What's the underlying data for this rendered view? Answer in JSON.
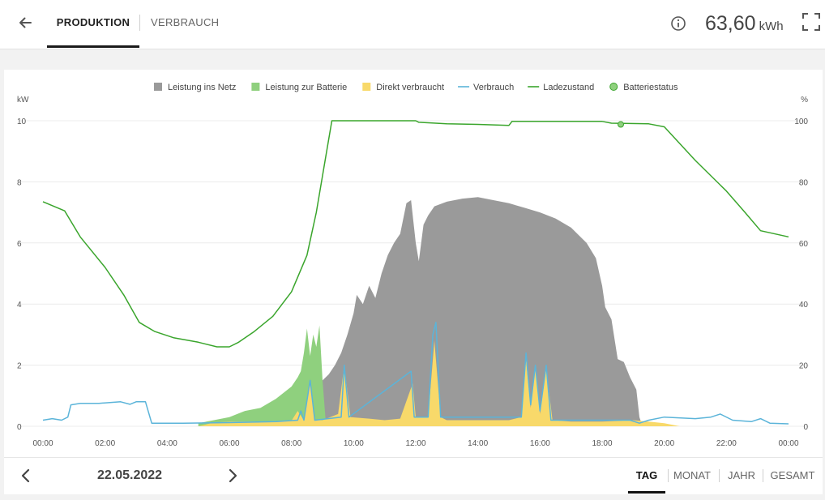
{
  "header": {
    "tabs": [
      {
        "label": "PRODUKTION",
        "active": true
      },
      {
        "label": "VERBRAUCH",
        "active": false
      }
    ],
    "energy_value": "63,60",
    "energy_unit": "kWh",
    "icons": [
      "arrow-left-icon",
      "info-icon",
      "fullscreen-icon"
    ]
  },
  "colors": {
    "grid": "#9a9a9a",
    "battery": "#8fd07e",
    "direct": "#f8d96a",
    "consumption": "#5bb4d9",
    "soc": "#3aa52c"
  },
  "footer": {
    "date": "22.05.2022",
    "periods": [
      {
        "label": "TAG",
        "active": true
      },
      {
        "label": "MONAT",
        "active": false
      },
      {
        "label": "JAHR",
        "active": false
      },
      {
        "label": "GESAMT",
        "active": false
      }
    ]
  },
  "chart_data": {
    "type": "area",
    "left_unit": "kW",
    "right_unit": "%",
    "y_left_range": [
      0,
      10
    ],
    "y_right_range": [
      0,
      100
    ],
    "y_left_ticks": [
      "0",
      "2",
      "4",
      "6",
      "8",
      "10"
    ],
    "y_right_ticks": [
      "0",
      "20",
      "40",
      "60",
      "80",
      "100"
    ],
    "x_range_hours": [
      0,
      24
    ],
    "x_ticks": [
      "00:00",
      "02:00",
      "04:00",
      "06:00",
      "08:00",
      "10:00",
      "12:00",
      "14:00",
      "16:00",
      "18:00",
      "20:00",
      "22:00",
      "00:00"
    ],
    "legend": [
      {
        "name": "Leistung ins Netz",
        "marker": "square",
        "color_key": "grid"
      },
      {
        "name": "Leistung zur Batterie",
        "marker": "square",
        "color_key": "battery"
      },
      {
        "name": "Direkt verbraucht",
        "marker": "square",
        "color_key": "direct"
      },
      {
        "name": "Verbrauch",
        "marker": "line",
        "color_key": "consumption"
      },
      {
        "name": "Ladezustand",
        "marker": "line",
        "color_key": "soc"
      },
      {
        "name": "Batteriestatus",
        "marker": "circle",
        "color_key": "soc"
      }
    ],
    "series": [
      {
        "name": "Leistung ins Netz",
        "kind": "area",
        "axis": "left",
        "color_key": "grid",
        "points": [
          [
            9.0,
            1.5
          ],
          [
            9.2,
            1.7
          ],
          [
            9.4,
            2.0
          ],
          [
            9.6,
            2.4
          ],
          [
            9.8,
            3.0
          ],
          [
            10.0,
            3.7
          ],
          [
            10.1,
            4.3
          ],
          [
            10.3,
            4.0
          ],
          [
            10.5,
            4.6
          ],
          [
            10.7,
            4.2
          ],
          [
            10.9,
            5.0
          ],
          [
            11.1,
            5.6
          ],
          [
            11.3,
            6.0
          ],
          [
            11.5,
            6.3
          ],
          [
            11.7,
            7.3
          ],
          [
            11.85,
            7.4
          ],
          [
            12.0,
            6.0
          ],
          [
            12.1,
            5.4
          ],
          [
            12.25,
            6.6
          ],
          [
            12.4,
            6.9
          ],
          [
            12.6,
            7.2
          ],
          [
            13.0,
            7.35
          ],
          [
            13.5,
            7.45
          ],
          [
            14.0,
            7.5
          ],
          [
            14.5,
            7.4
          ],
          [
            15.0,
            7.3
          ],
          [
            15.5,
            7.15
          ],
          [
            16.0,
            7.0
          ],
          [
            16.5,
            6.8
          ],
          [
            17.0,
            6.5
          ],
          [
            17.5,
            6.0
          ],
          [
            17.8,
            5.5
          ],
          [
            18.0,
            4.6
          ],
          [
            18.1,
            3.9
          ],
          [
            18.3,
            3.5
          ],
          [
            18.5,
            2.2
          ],
          [
            18.7,
            2.1
          ],
          [
            18.9,
            1.6
          ],
          [
            19.1,
            1.2
          ],
          [
            19.2,
            0.3
          ],
          [
            19.3,
            0.0
          ]
        ]
      },
      {
        "name": "Leistung zur Batterie",
        "kind": "area",
        "axis": "left",
        "color_key": "battery",
        "points": [
          [
            5.0,
            0.1
          ],
          [
            5.5,
            0.2
          ],
          [
            6.0,
            0.3
          ],
          [
            6.5,
            0.5
          ],
          [
            7.0,
            0.6
          ],
          [
            7.5,
            0.9
          ],
          [
            8.0,
            1.3
          ],
          [
            8.2,
            1.6
          ],
          [
            8.3,
            1.8
          ],
          [
            8.4,
            2.4
          ],
          [
            8.5,
            3.2
          ],
          [
            8.6,
            2.3
          ],
          [
            8.7,
            3.0
          ],
          [
            8.8,
            2.6
          ],
          [
            8.9,
            3.3
          ],
          [
            9.0,
            1.5
          ],
          [
            9.1,
            0.2
          ]
        ]
      },
      {
        "name": "Direkt verbraucht",
        "kind": "area",
        "axis": "left",
        "color_key": "direct",
        "points": [
          [
            5.0,
            0.0
          ],
          [
            5.5,
            0.12
          ],
          [
            6.0,
            0.15
          ],
          [
            7.0,
            0.15
          ],
          [
            8.0,
            0.18
          ],
          [
            8.2,
            0.5
          ],
          [
            8.4,
            0.2
          ],
          [
            8.6,
            1.5
          ],
          [
            8.75,
            0.2
          ],
          [
            9.0,
            0.2
          ],
          [
            9.5,
            0.4
          ],
          [
            9.7,
            2.0
          ],
          [
            9.9,
            0.3
          ],
          [
            10.5,
            0.25
          ],
          [
            11.0,
            0.2
          ],
          [
            11.5,
            0.25
          ],
          [
            11.9,
            1.4
          ],
          [
            12.0,
            0.3
          ],
          [
            12.4,
            0.3
          ],
          [
            12.6,
            2.8
          ],
          [
            12.8,
            0.3
          ],
          [
            13.0,
            0.2
          ],
          [
            14.0,
            0.2
          ],
          [
            15.0,
            0.2
          ],
          [
            15.4,
            0.3
          ],
          [
            15.55,
            2.2
          ],
          [
            15.7,
            0.6
          ],
          [
            15.85,
            1.9
          ],
          [
            16.0,
            0.4
          ],
          [
            16.2,
            1.9
          ],
          [
            16.4,
            0.2
          ],
          [
            17.0,
            0.15
          ],
          [
            18.0,
            0.15
          ],
          [
            19.0,
            0.2
          ],
          [
            19.5,
            0.15
          ],
          [
            20.0,
            0.1
          ],
          [
            20.5,
            0.0
          ]
        ]
      },
      {
        "name": "Verbrauch",
        "kind": "line",
        "axis": "left",
        "color_key": "consumption",
        "points": [
          [
            0.0,
            0.2
          ],
          [
            0.3,
            0.25
          ],
          [
            0.6,
            0.2
          ],
          [
            0.8,
            0.3
          ],
          [
            0.9,
            0.7
          ],
          [
            1.2,
            0.75
          ],
          [
            1.8,
            0.75
          ],
          [
            2.2,
            0.78
          ],
          [
            2.5,
            0.8
          ],
          [
            2.8,
            0.72
          ],
          [
            3.0,
            0.8
          ],
          [
            3.3,
            0.8
          ],
          [
            3.5,
            0.1
          ],
          [
            4.5,
            0.1
          ],
          [
            6.0,
            0.12
          ],
          [
            7.5,
            0.15
          ],
          [
            8.2,
            0.2
          ],
          [
            8.3,
            0.5
          ],
          [
            8.4,
            0.2
          ],
          [
            8.6,
            1.5
          ],
          [
            8.75,
            0.2
          ],
          [
            9.6,
            0.3
          ],
          [
            9.7,
            2.0
          ],
          [
            9.85,
            0.3
          ],
          [
            11.85,
            1.8
          ],
          [
            11.95,
            0.3
          ],
          [
            12.4,
            0.3
          ],
          [
            12.55,
            3.0
          ],
          [
            12.65,
            3.4
          ],
          [
            12.8,
            0.3
          ],
          [
            15.4,
            0.3
          ],
          [
            15.55,
            2.4
          ],
          [
            15.7,
            0.7
          ],
          [
            15.85,
            2.0
          ],
          [
            16.0,
            0.5
          ],
          [
            16.2,
            2.0
          ],
          [
            16.35,
            0.2
          ],
          [
            18.9,
            0.2
          ],
          [
            19.2,
            0.1
          ],
          [
            19.5,
            0.2
          ],
          [
            20.0,
            0.3
          ],
          [
            21.0,
            0.25
          ],
          [
            21.5,
            0.3
          ],
          [
            21.8,
            0.4
          ],
          [
            22.2,
            0.2
          ],
          [
            22.8,
            0.15
          ],
          [
            23.1,
            0.25
          ],
          [
            23.4,
            0.1
          ],
          [
            24.0,
            0.08
          ]
        ]
      },
      {
        "name": "Ladezustand",
        "kind": "line",
        "axis": "right",
        "color_key": "soc",
        "points": [
          [
            0.0,
            73.5
          ],
          [
            0.7,
            70.5
          ],
          [
            1.2,
            62
          ],
          [
            2.0,
            52
          ],
          [
            2.6,
            43
          ],
          [
            3.1,
            34
          ],
          [
            3.6,
            31
          ],
          [
            4.2,
            29
          ],
          [
            5.0,
            27.5
          ],
          [
            5.6,
            26
          ],
          [
            6.0,
            26
          ],
          [
            6.3,
            27.5
          ],
          [
            6.8,
            31
          ],
          [
            7.4,
            36
          ],
          [
            8.0,
            44
          ],
          [
            8.5,
            56
          ],
          [
            8.8,
            70
          ],
          [
            9.1,
            88
          ],
          [
            9.3,
            100
          ],
          [
            12.0,
            100
          ],
          [
            12.1,
            99.5
          ],
          [
            13.0,
            99
          ],
          [
            14.0,
            98.8
          ],
          [
            15.0,
            98.5
          ],
          [
            15.1,
            99.8
          ],
          [
            18.0,
            99.8
          ],
          [
            18.3,
            99.2
          ],
          [
            19.5,
            99
          ],
          [
            20.0,
            98
          ],
          [
            21.0,
            87
          ],
          [
            22.0,
            77
          ],
          [
            22.6,
            70
          ],
          [
            23.1,
            64
          ],
          [
            24.0,
            62
          ]
        ]
      }
    ],
    "battery_status_point": [
      18.6,
      98.8
    ]
  }
}
